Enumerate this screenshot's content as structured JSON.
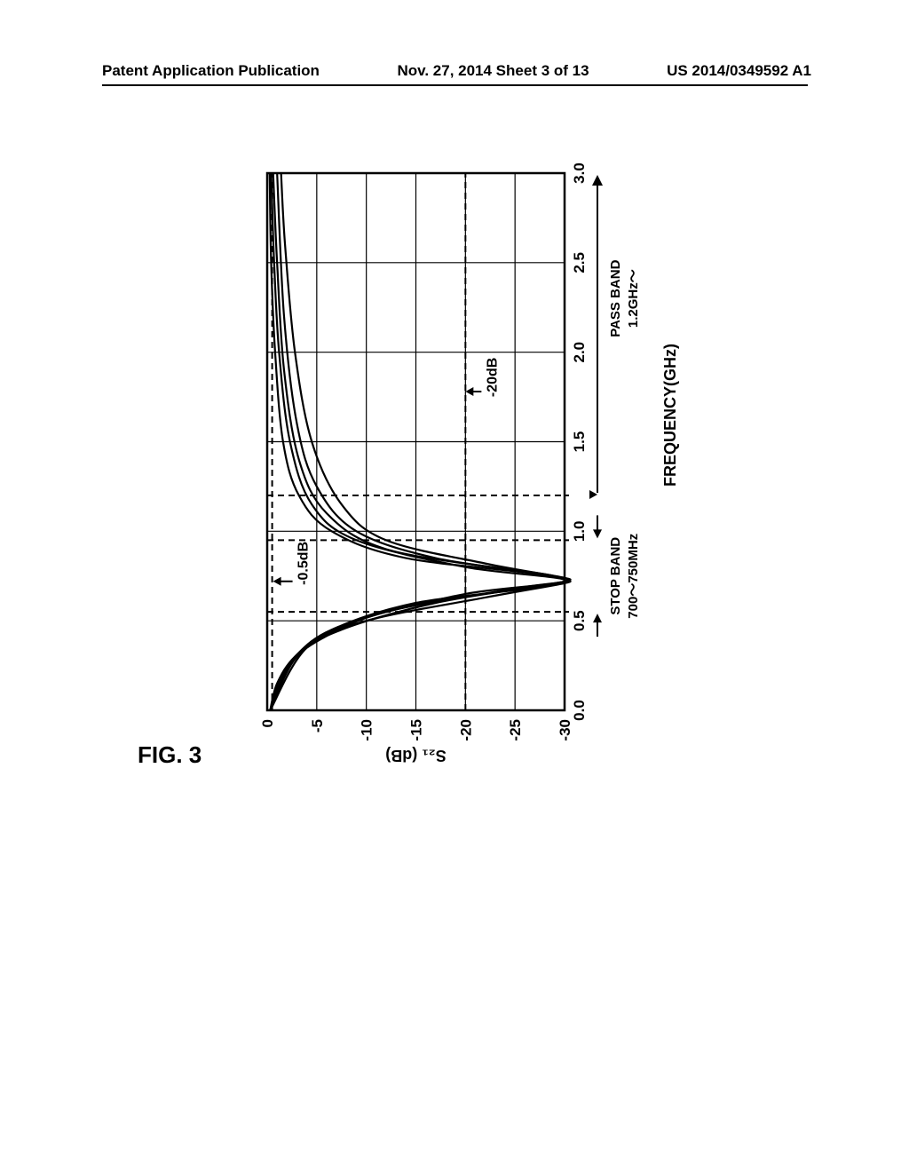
{
  "header": {
    "left": "Patent Application Publication",
    "center": "Nov. 27, 2014  Sheet 3 of 13",
    "right": "US 2014/0349592 A1"
  },
  "figure_label": "FIG. 3",
  "chart": {
    "type": "line",
    "xlabel": "FREQUENCY(GHz)",
    "ylabel": "S₂₁ (dB)",
    "xlim": [
      0.0,
      3.0
    ],
    "ylim": [
      -30,
      0
    ],
    "xticks": [
      0.0,
      0.5,
      1.0,
      1.5,
      2.0,
      2.5,
      3.0
    ],
    "yticks": [
      0,
      -5,
      -10,
      -15,
      -20,
      -25,
      -30
    ],
    "grid_color": "#000000",
    "background_color": "#ffffff",
    "line_color": "#000000",
    "line_width": 2.2,
    "axis_line_width": 2.5,
    "tick_font_size": 17,
    "label_font_size": 18,
    "annotations": {
      "neg05db": {
        "text": "-0.5dB",
        "y": -0.5
      },
      "neg20db": {
        "text": "-20dB",
        "y": -20
      },
      "stop_band": {
        "text": "STOP BAND\n700〜750MHz",
        "x_from": 0.55,
        "x_to": 0.95
      },
      "pass_band": {
        "text": "PASS BAND\n1.2GHz〜",
        "x_from": 1.2
      }
    },
    "dashed_refs": {
      "x_values": [
        0.55,
        0.95,
        1.2
      ],
      "y_values": [
        -0.5,
        -20
      ]
    },
    "series": [
      {
        "notch_freq": 0.725,
        "points": [
          [
            0.0,
            -0.3
          ],
          [
            0.15,
            -1.0
          ],
          [
            0.3,
            -2.8
          ],
          [
            0.45,
            -6.5
          ],
          [
            0.6,
            -15
          ],
          [
            0.725,
            -30
          ],
          [
            0.85,
            -14
          ],
          [
            1.0,
            -6.5
          ],
          [
            1.2,
            -3.2
          ],
          [
            1.5,
            -1.6
          ],
          [
            2.0,
            -0.8
          ],
          [
            2.5,
            -0.4
          ],
          [
            3.0,
            -0.25
          ]
        ]
      },
      {
        "notch_freq": 0.725,
        "points": [
          [
            0.0,
            -0.3
          ],
          [
            0.2,
            -1.5
          ],
          [
            0.35,
            -4.0
          ],
          [
            0.5,
            -9
          ],
          [
            0.65,
            -20
          ],
          [
            0.725,
            -30
          ],
          [
            0.8,
            -20
          ],
          [
            0.95,
            -9
          ],
          [
            1.15,
            -4.5
          ],
          [
            1.5,
            -2.3
          ],
          [
            2.0,
            -1.2
          ],
          [
            2.5,
            -0.7
          ],
          [
            3.0,
            -0.4
          ]
        ]
      },
      {
        "notch_freq": 0.725,
        "points": [
          [
            0.0,
            -0.3
          ],
          [
            0.25,
            -2.2
          ],
          [
            0.4,
            -5.5
          ],
          [
            0.55,
            -12
          ],
          [
            0.68,
            -25
          ],
          [
            0.725,
            -30
          ],
          [
            0.78,
            -25
          ],
          [
            0.9,
            -12
          ],
          [
            1.1,
            -6
          ],
          [
            1.4,
            -3.2
          ],
          [
            1.9,
            -1.7
          ],
          [
            2.5,
            -1.0
          ],
          [
            3.0,
            -0.6
          ]
        ]
      },
      {
        "notch_freq": 0.725,
        "points": [
          [
            0.0,
            -0.3
          ],
          [
            0.3,
            -3.0
          ],
          [
            0.45,
            -7.5
          ],
          [
            0.6,
            -17
          ],
          [
            0.7,
            -28
          ],
          [
            0.725,
            -30
          ],
          [
            0.76,
            -28
          ],
          [
            0.85,
            -17
          ],
          [
            1.0,
            -9
          ],
          [
            1.25,
            -5
          ],
          [
            1.6,
            -3.0
          ],
          [
            2.2,
            -1.7
          ],
          [
            3.0,
            -1.0
          ]
        ]
      },
      {
        "notch_freq": 0.725,
        "points": [
          [
            0.0,
            -0.3
          ],
          [
            0.35,
            -4.0
          ],
          [
            0.5,
            -10
          ],
          [
            0.63,
            -22
          ],
          [
            0.71,
            -30
          ],
          [
            0.725,
            -30
          ],
          [
            0.74,
            -30
          ],
          [
            0.82,
            -22
          ],
          [
            0.95,
            -12
          ],
          [
            1.15,
            -7.5
          ],
          [
            1.5,
            -4.5
          ],
          [
            2.0,
            -2.8
          ],
          [
            2.6,
            -1.8
          ],
          [
            3.0,
            -1.4
          ]
        ]
      }
    ]
  }
}
